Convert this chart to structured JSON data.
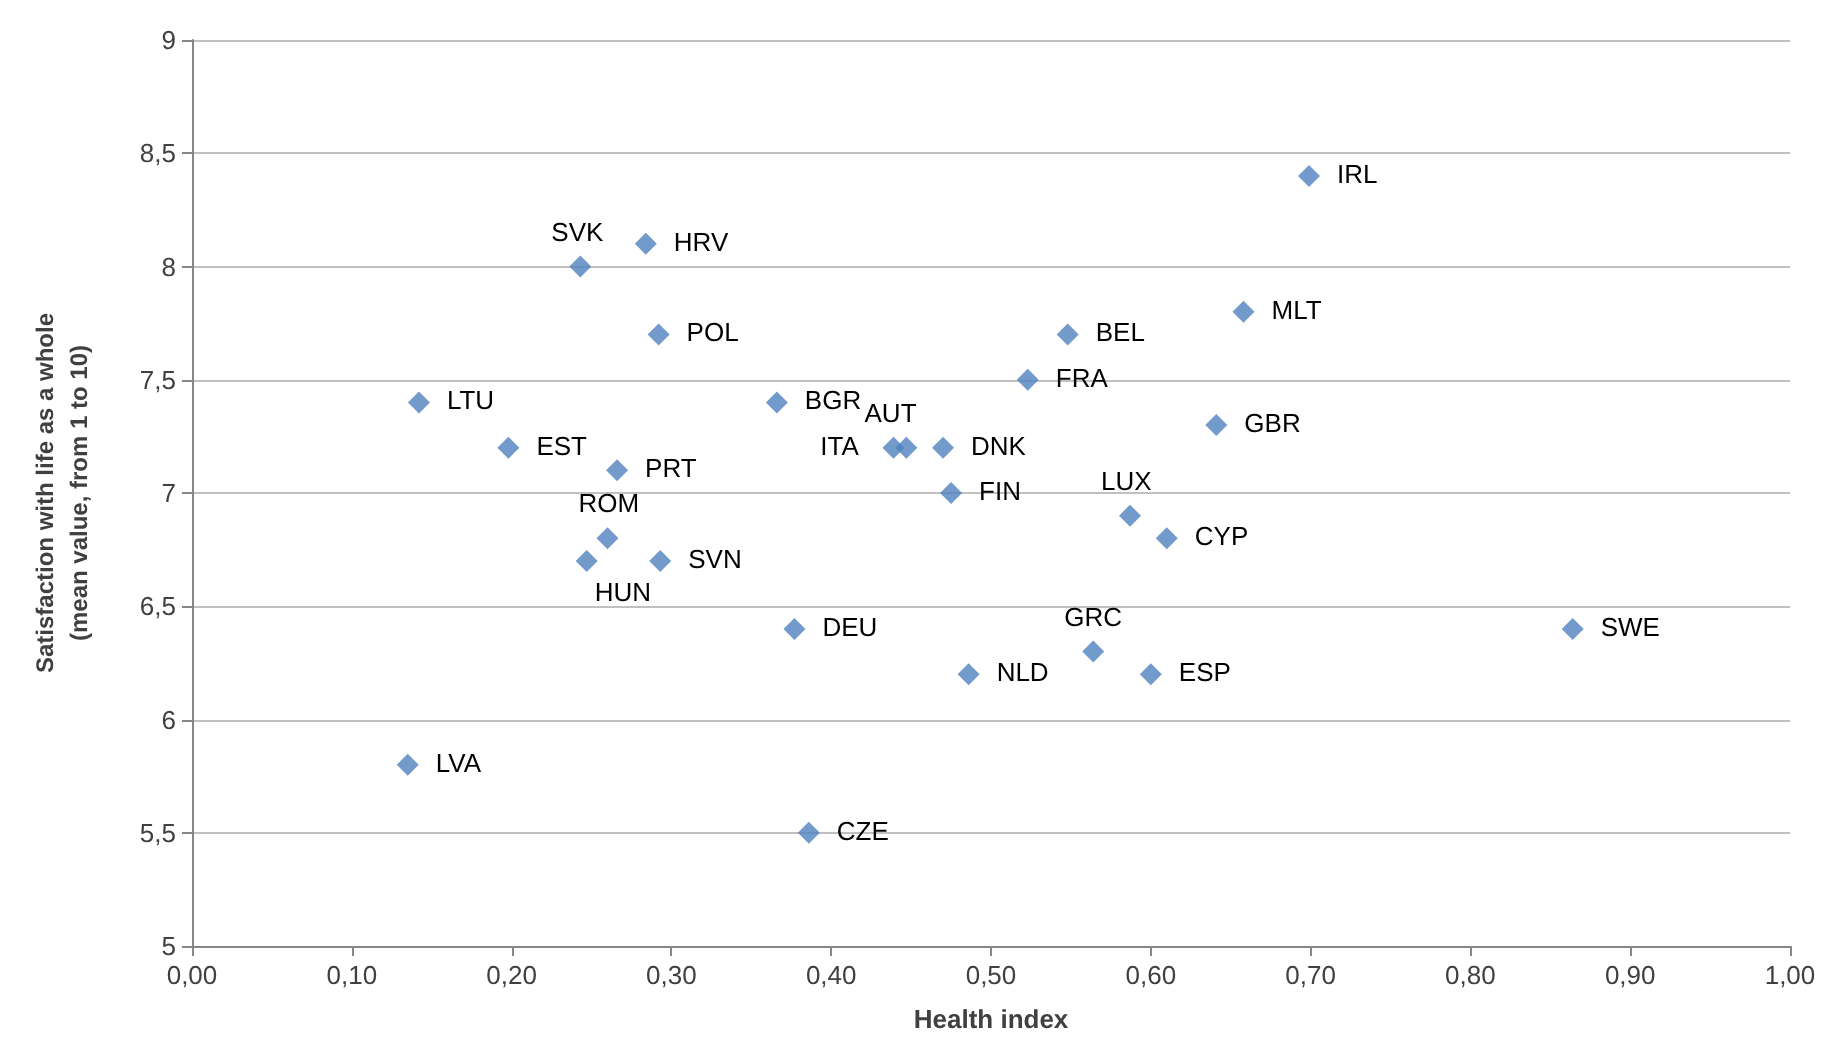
{
  "chart_data": {
    "type": "scatter",
    "xlabel": "Health index",
    "ylabel": "Satisfaction with life as a whole\n(mean value, from 1 to 10)",
    "x": [
      0.142,
      0.198,
      0.243,
      0.284,
      0.292,
      0.266,
      0.26,
      0.247,
      0.293,
      0.135,
      0.366,
      0.439,
      0.447,
      0.47,
      0.475,
      0.377,
      0.386,
      0.486,
      0.523,
      0.548,
      0.564,
      0.6,
      0.587,
      0.61,
      0.641,
      0.658,
      0.699,
      0.864
    ],
    "series": [
      {
        "color": "#4f81bd",
        "values": [
          7.4,
          7.2,
          8.0,
          8.1,
          7.7,
          7.1,
          6.8,
          6.7,
          6.7,
          5.8,
          7.4,
          7.2,
          7.2,
          7.2,
          7.0,
          6.4,
          5.5,
          6.2,
          7.5,
          7.7,
          6.3,
          6.2,
          6.9,
          6.8,
          7.3,
          7.8,
          8.4,
          6.4
        ]
      }
    ],
    "annotations": [
      {
        "text": "LTU",
        "x": 0.142,
        "y": 7.4
      },
      {
        "text": "EST",
        "x": 0.198,
        "y": 7.2
      },
      {
        "text": "SVK",
        "x": 0.243,
        "y": 8.0
      },
      {
        "text": "HRV",
        "x": 0.284,
        "y": 8.1
      },
      {
        "text": "POL",
        "x": 0.292,
        "y": 7.7
      },
      {
        "text": "PRT",
        "x": 0.266,
        "y": 7.1
      },
      {
        "text": "ROM",
        "x": 0.26,
        "y": 6.8
      },
      {
        "text": "HUN",
        "x": 0.247,
        "y": 6.7
      },
      {
        "text": "SVN",
        "x": 0.293,
        "y": 6.7
      },
      {
        "text": "LVA",
        "x": 0.135,
        "y": 5.8
      },
      {
        "text": "BGR",
        "x": 0.366,
        "y": 7.4
      },
      {
        "text": "AUT",
        "x": 0.439,
        "y": 7.2
      },
      {
        "text": "ITA",
        "x": 0.447,
        "y": 7.2
      },
      {
        "text": "DNK",
        "x": 0.47,
        "y": 7.2
      },
      {
        "text": "FIN",
        "x": 0.475,
        "y": 7.0
      },
      {
        "text": "DEU",
        "x": 0.377,
        "y": 6.4
      },
      {
        "text": "CZE",
        "x": 0.386,
        "y": 5.5
      },
      {
        "text": "NLD",
        "x": 0.486,
        "y": 6.2
      },
      {
        "text": "FRA",
        "x": 0.523,
        "y": 7.5
      },
      {
        "text": "BEL",
        "x": 0.548,
        "y": 7.7
      },
      {
        "text": "GRC",
        "x": 0.564,
        "y": 6.3
      },
      {
        "text": "ESP",
        "x": 0.6,
        "y": 6.2
      },
      {
        "text": "LUX",
        "x": 0.587,
        "y": 6.9
      },
      {
        "text": "CYP",
        "x": 0.61,
        "y": 6.8
      },
      {
        "text": "GBR",
        "x": 0.641,
        "y": 7.3
      },
      {
        "text": "MLT",
        "x": 0.658,
        "y": 7.8
      },
      {
        "text": "IRL",
        "x": 0.699,
        "y": 8.4
      },
      {
        "text": "SWE",
        "x": 0.864,
        "y": 6.4
      }
    ],
    "xlim": [
      0,
      1
    ],
    "xticks": [
      {
        "value": 0,
        "label": "0,00"
      },
      {
        "value": 0.1,
        "label": "0,10"
      },
      {
        "value": 0.2,
        "label": "0,20"
      },
      {
        "value": 0.3,
        "label": "0,30"
      },
      {
        "value": 0.4,
        "label": "0,40"
      },
      {
        "value": 0.5,
        "label": "0,50"
      },
      {
        "value": 0.6,
        "label": "0,60"
      },
      {
        "value": 0.7,
        "label": "0,70"
      },
      {
        "value": 0.8,
        "label": "0,80"
      },
      {
        "value": 0.9,
        "label": "0,90"
      },
      {
        "value": 1,
        "label": "1,00"
      }
    ],
    "ylim": [
      5,
      9
    ],
    "yticks": [
      5,
      {
        "value": 5.5,
        "label": "5,5"
      },
      6,
      {
        "value": 6.5,
        "label": "6,5"
      },
      7,
      {
        "value": 7.5,
        "label": "7,5"
      },
      8,
      {
        "value": 8.5,
        "label": "8,5"
      },
      9
    ],
    "grid": "y",
    "marker": "diamond"
  }
}
